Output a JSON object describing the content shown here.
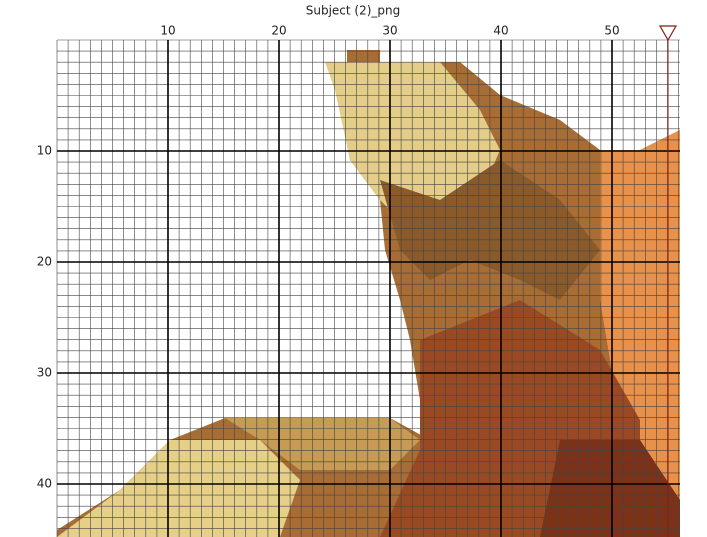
{
  "title": "Subject (2)_png",
  "axis": {
    "x_labels": [
      10,
      20,
      30,
      40,
      50
    ],
    "y_labels": [
      10,
      20,
      30,
      40
    ]
  }
}
